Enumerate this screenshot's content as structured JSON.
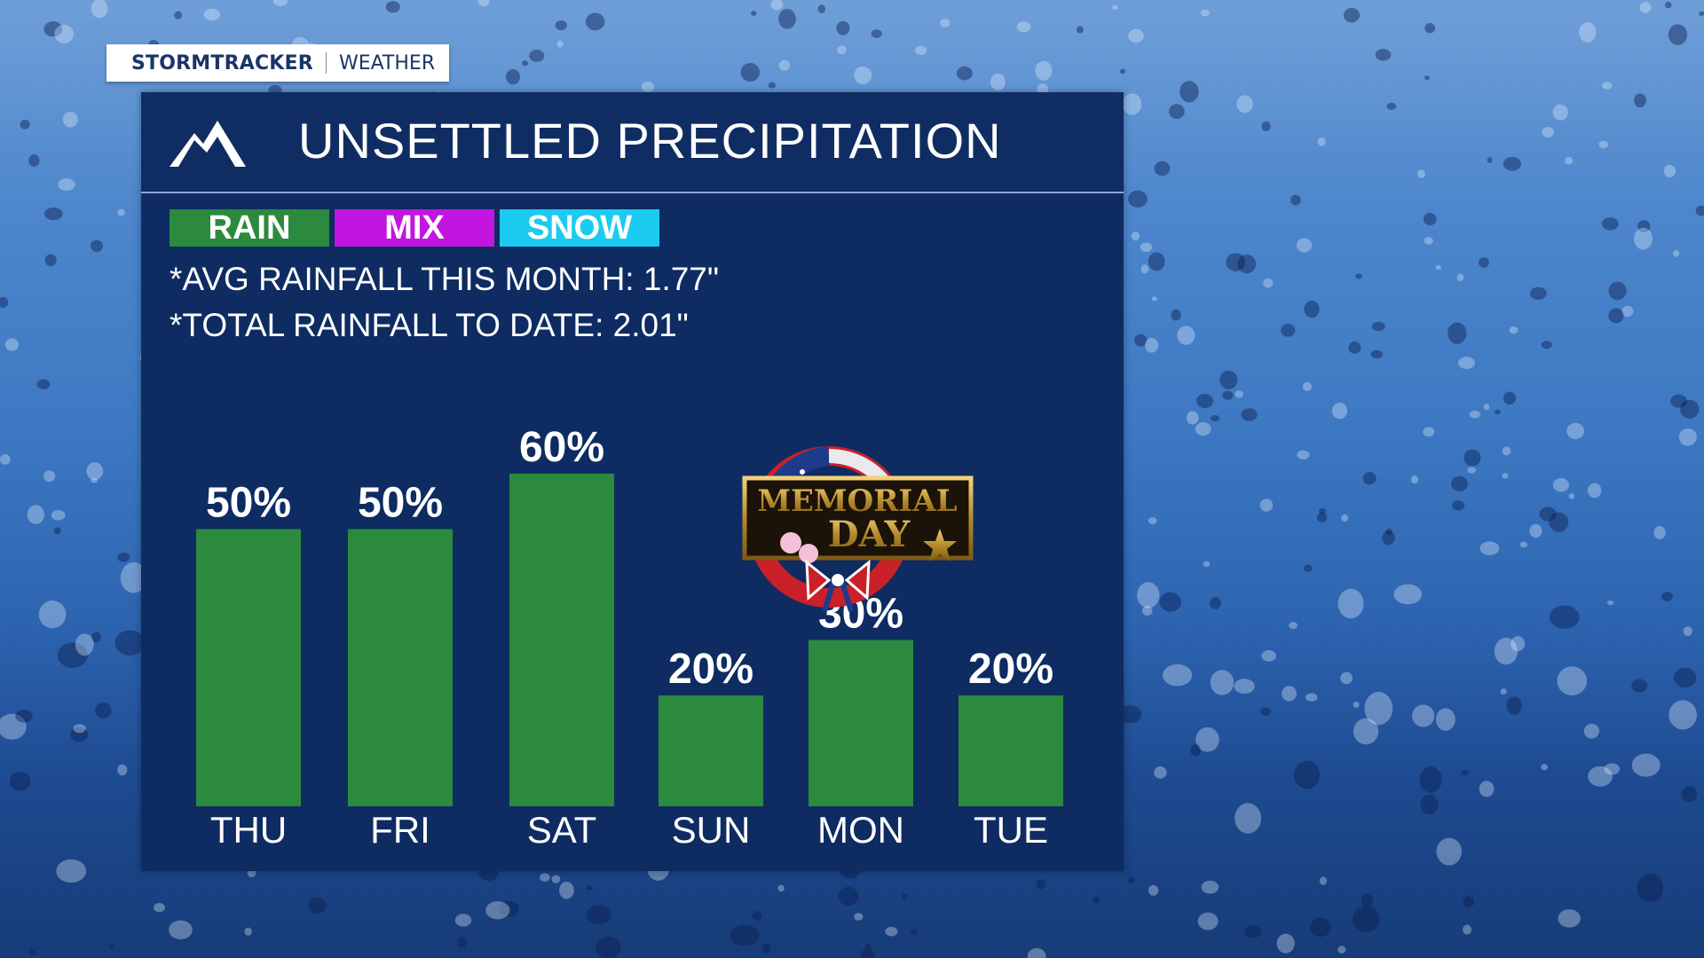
{
  "brand": {
    "name": "STORMTRACKER",
    "section": "WEATHER"
  },
  "header": {
    "title": "UNSETTLED PRECIPITATION",
    "logo_icon": "mountain-icon"
  },
  "legend": [
    {
      "label": "RAIN",
      "color": "#2b8a3e"
    },
    {
      "label": "MIX",
      "color": "#c215e0"
    },
    {
      "label": "SNOW",
      "color": "#1ccbf0"
    }
  ],
  "stats": {
    "avg": "*AVG RAINFALL THIS MONTH: 1.77\"",
    "total": "*TOTAL RAINFALL TO DATE: 2.01\""
  },
  "badge": {
    "line1": "MEMORIAL",
    "line2": "DAY"
  },
  "chart_data": {
    "type": "bar",
    "categories": [
      "THU",
      "FRI",
      "SAT",
      "SUN",
      "MON",
      "TUE"
    ],
    "values": [
      50,
      50,
      60,
      20,
      30,
      20
    ],
    "value_labels": [
      "50%",
      "50%",
      "60%",
      "20%",
      "30%",
      "20%"
    ],
    "bar_color": "#2b8a3e",
    "ylim": [
      0,
      60
    ],
    "grid": false
  }
}
